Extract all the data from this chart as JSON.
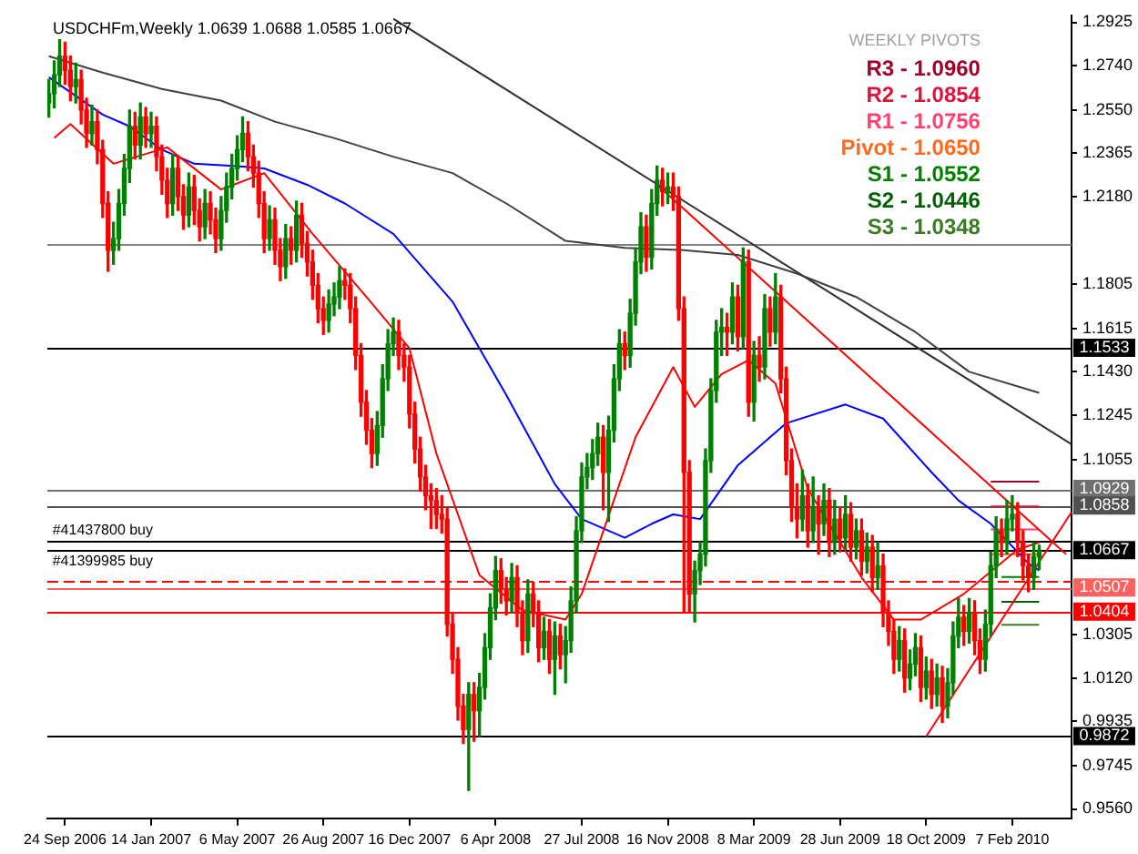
{
  "chart_data": {
    "type": "candlestick",
    "title": "USDCHFm,Weekly 1.0639 1.0688 1.0585 1.0667",
    "legend_title": "WEEKLY PIVOTS",
    "legend": "top right",
    "grid": false,
    "marker": "none",
    "xlim": [
      "2006-09-01",
      "2010-04-25"
    ],
    "xticks": [
      {
        "value": "2006-09-24",
        "label": "24 Sep 2006"
      },
      {
        "value": "2007-01-14",
        "label": "14 Jan 2007"
      },
      {
        "value": "2007-05-06",
        "label": "6 May 2007"
      },
      {
        "value": "2007-08-26",
        "label": "26 Aug 2007"
      },
      {
        "value": "2007-12-16",
        "label": "16 Dec 2007"
      },
      {
        "value": "2008-04-06",
        "label": "6 Apr 2008"
      },
      {
        "value": "2008-07-27",
        "label": "27 Jul 2008"
      },
      {
        "value": "2008-11-16",
        "label": "16 Nov 2008"
      },
      {
        "value": "2009-03-08",
        "label": "8 Mar 2009"
      },
      {
        "value": "2009-06-28",
        "label": "28 Jun 2009"
      },
      {
        "value": "2009-10-18",
        "label": "18 Oct 2009"
      },
      {
        "value": "2010-02-07",
        "label": "7 Feb 2010"
      }
    ],
    "ylim": [
      0.952,
      1.2955
    ],
    "yticks": [
      1.2925,
      {
        "value": 1.274,
        "label": "1.2740"
      },
      {
        "value": 1.255,
        "label": "1.2550"
      },
      1.2365,
      {
        "value": 1.218,
        "label": "1.2180"
      },
      1.1805,
      1.1615,
      {
        "value": 1.143,
        "label": "1.1430"
      },
      1.1245,
      1.1055,
      1.0305,
      {
        "value": 1.012,
        "label": "1.0120"
      },
      0.9935,
      0.9745,
      {
        "value": 0.956,
        "label": "0.9560"
      }
    ],
    "x": [
      "2006-09-03",
      "2006-09-10",
      "2006-09-17",
      "2006-09-24",
      "2006-10-01",
      "2006-10-08",
      "2006-10-15",
      "2006-10-22",
      "2006-10-29",
      "2006-11-05",
      "2006-11-12",
      "2006-11-19",
      "2006-11-26",
      "2006-12-03",
      "2006-12-10",
      "2006-12-17",
      "2006-12-24",
      "2006-12-31",
      "2007-01-07",
      "2007-01-14",
      "2007-01-21",
      "2007-01-28",
      "2007-02-04",
      "2007-02-11",
      "2007-02-18",
      "2007-02-25",
      "2007-03-04",
      "2007-03-11",
      "2007-03-18",
      "2007-03-25",
      "2007-04-01",
      "2007-04-08",
      "2007-04-15",
      "2007-04-22",
      "2007-04-29",
      "2007-05-06",
      "2007-05-13",
      "2007-05-20",
      "2007-05-27",
      "2007-06-03",
      "2007-06-10",
      "2007-06-17",
      "2007-06-24",
      "2007-07-01",
      "2007-07-08",
      "2007-07-15",
      "2007-07-22",
      "2007-07-29",
      "2007-08-05",
      "2007-08-12",
      "2007-08-19",
      "2007-08-26",
      "2007-09-02",
      "2007-09-09",
      "2007-09-16",
      "2007-09-23",
      "2007-09-30",
      "2007-10-07",
      "2007-10-14",
      "2007-10-21",
      "2007-10-28",
      "2007-11-04",
      "2007-11-11",
      "2007-11-18",
      "2007-11-25",
      "2007-12-02",
      "2007-12-09",
      "2007-12-16",
      "2007-12-23",
      "2007-12-30",
      "2008-01-06",
      "2008-01-13",
      "2008-01-20",
      "2008-01-27",
      "2008-02-03",
      "2008-02-10",
      "2008-02-17",
      "2008-02-24",
      "2008-03-02",
      "2008-03-09",
      "2008-03-16",
      "2008-03-23",
      "2008-03-30",
      "2008-04-06",
      "2008-04-13",
      "2008-04-20",
      "2008-04-27",
      "2008-05-04",
      "2008-05-11",
      "2008-05-18",
      "2008-05-25",
      "2008-06-01",
      "2008-06-08",
      "2008-06-15",
      "2008-06-22",
      "2008-06-29",
      "2008-07-06",
      "2008-07-13",
      "2008-07-20",
      "2008-07-27",
      "2008-08-03",
      "2008-08-10",
      "2008-08-17",
      "2008-08-24",
      "2008-08-31",
      "2008-09-07",
      "2008-09-14",
      "2008-09-21",
      "2008-09-28",
      "2008-10-05",
      "2008-10-12",
      "2008-10-19",
      "2008-10-26",
      "2008-11-02",
      "2008-11-09",
      "2008-11-16",
      "2008-11-23",
      "2008-11-30",
      "2008-12-07",
      "2008-12-14",
      "2008-12-21",
      "2008-12-28",
      "2009-01-04",
      "2009-01-11",
      "2009-01-18",
      "2009-01-25",
      "2009-02-01",
      "2009-02-08",
      "2009-02-15",
      "2009-02-22",
      "2009-03-01",
      "2009-03-08",
      "2009-03-15",
      "2009-03-22",
      "2009-03-29",
      "2009-04-05",
      "2009-04-12",
      "2009-04-19",
      "2009-04-26",
      "2009-05-03",
      "2009-05-10",
      "2009-05-17",
      "2009-05-24",
      "2009-05-31",
      "2009-06-07",
      "2009-06-14",
      "2009-06-21",
      "2009-06-28",
      "2009-07-05",
      "2009-07-12",
      "2009-07-19",
      "2009-07-26",
      "2009-08-02",
      "2009-08-09",
      "2009-08-16",
      "2009-08-23",
      "2009-08-30",
      "2009-09-06",
      "2009-09-13",
      "2009-09-20",
      "2009-09-27",
      "2009-10-04",
      "2009-10-11",
      "2009-10-18",
      "2009-10-25",
      "2009-11-01",
      "2009-11-08",
      "2009-11-15",
      "2009-11-22",
      "2009-11-29",
      "2009-12-06",
      "2009-12-13",
      "2009-12-20",
      "2009-12-27",
      "2010-01-03",
      "2010-01-10",
      "2010-01-17",
      "2010-01-24",
      "2010-01-31",
      "2010-02-07",
      "2010-02-14",
      "2010-02-21",
      "2010-02-28",
      "2010-03-07",
      "2010-03-14"
    ],
    "ohlc": [
      [
        1.258,
        1.268,
        1.252,
        1.262
      ],
      [
        1.262,
        1.276,
        1.256,
        1.27
      ],
      [
        1.27,
        1.285,
        1.265,
        1.278
      ],
      [
        1.278,
        1.284,
        1.266,
        1.272
      ],
      [
        1.272,
        1.278,
        1.259,
        1.265
      ],
      [
        1.265,
        1.275,
        1.258,
        1.268
      ],
      [
        1.268,
        1.272,
        1.249,
        1.255
      ],
      [
        1.255,
        1.26,
        1.239,
        1.245
      ],
      [
        1.245,
        1.257,
        1.24,
        1.25
      ],
      [
        1.25,
        1.255,
        1.232,
        1.238
      ],
      [
        1.238,
        1.242,
        1.209,
        1.215
      ],
      [
        1.215,
        1.22,
        1.186,
        1.195
      ],
      [
        1.195,
        1.207,
        1.189,
        1.2
      ],
      [
        1.2,
        1.221,
        1.195,
        1.215
      ],
      [
        1.215,
        1.236,
        1.21,
        1.23
      ],
      [
        1.23,
        1.255,
        1.224,
        1.248
      ],
      [
        1.248,
        1.254,
        1.234,
        1.24
      ],
      [
        1.24,
        1.258,
        1.234,
        1.252
      ],
      [
        1.252,
        1.256,
        1.239,
        1.245
      ],
      [
        1.245,
        1.254,
        1.239,
        1.248
      ],
      [
        1.248,
        1.252,
        1.229,
        1.235
      ],
      [
        1.235,
        1.24,
        1.219,
        1.225
      ],
      [
        1.225,
        1.23,
        1.209,
        1.215
      ],
      [
        1.215,
        1.236,
        1.21,
        1.23
      ],
      [
        1.23,
        1.235,
        1.212,
        1.218
      ],
      [
        1.218,
        1.223,
        1.204,
        1.21
      ],
      [
        1.21,
        1.228,
        1.205,
        1.222
      ],
      [
        1.222,
        1.227,
        1.206,
        1.212
      ],
      [
        1.212,
        1.217,
        1.199,
        1.205
      ],
      [
        1.205,
        1.221,
        1.2,
        1.215
      ],
      [
        1.215,
        1.22,
        1.202,
        1.208
      ],
      [
        1.208,
        1.213,
        1.194,
        1.2
      ],
      [
        1.2,
        1.218,
        1.195,
        1.212
      ],
      [
        1.212,
        1.228,
        1.207,
        1.222
      ],
      [
        1.222,
        1.236,
        1.217,
        1.23
      ],
      [
        1.23,
        1.244,
        1.225,
        1.238
      ],
      [
        1.238,
        1.252,
        1.233,
        1.245
      ],
      [
        1.245,
        1.25,
        1.229,
        1.235
      ],
      [
        1.235,
        1.24,
        1.222,
        1.228
      ],
      [
        1.228,
        1.233,
        1.209,
        1.215
      ],
      [
        1.215,
        1.22,
        1.194,
        1.2
      ],
      [
        1.2,
        1.214,
        1.195,
        1.208
      ],
      [
        1.208,
        1.213,
        1.189,
        1.195
      ],
      [
        1.195,
        1.2,
        1.182,
        1.188
      ],
      [
        1.188,
        1.206,
        1.183,
        1.2
      ],
      [
        1.2,
        1.205,
        1.189,
        1.195
      ],
      [
        1.195,
        1.216,
        1.19,
        1.21
      ],
      [
        1.21,
        1.215,
        1.192,
        1.198
      ],
      [
        1.198,
        1.203,
        1.184,
        1.19
      ],
      [
        1.19,
        1.195,
        1.174,
        1.18
      ],
      [
        1.18,
        1.185,
        1.164,
        1.17
      ],
      [
        1.17,
        1.175,
        1.159,
        1.165
      ],
      [
        1.165,
        1.178,
        1.16,
        1.172
      ],
      [
        1.172,
        1.181,
        1.167,
        1.175
      ],
      [
        1.175,
        1.188,
        1.17,
        1.182
      ],
      [
        1.182,
        1.187,
        1.174,
        1.18
      ],
      [
        1.18,
        1.185,
        1.164,
        1.17
      ],
      [
        1.17,
        1.175,
        1.144,
        1.15
      ],
      [
        1.15,
        1.155,
        1.124,
        1.13
      ],
      [
        1.13,
        1.135,
        1.112,
        1.118
      ],
      [
        1.118,
        1.123,
        1.102,
        1.108
      ],
      [
        1.108,
        1.126,
        1.103,
        1.12
      ],
      [
        1.12,
        1.146,
        1.115,
        1.14
      ],
      [
        1.14,
        1.161,
        1.135,
        1.155
      ],
      [
        1.155,
        1.166,
        1.15,
        1.16
      ],
      [
        1.16,
        1.165,
        1.144,
        1.15
      ],
      [
        1.15,
        1.155,
        1.139,
        1.145
      ],
      [
        1.145,
        1.15,
        1.119,
        1.125
      ],
      [
        1.125,
        1.13,
        1.104,
        1.11
      ],
      [
        1.11,
        1.115,
        1.092,
        1.098
      ],
      [
        1.098,
        1.103,
        1.084,
        1.09
      ],
      [
        1.09,
        1.095,
        1.076,
        1.088
      ],
      [
        1.088,
        1.093,
        1.076,
        1.082
      ],
      [
        1.082,
        1.09,
        1.074,
        1.08
      ],
      [
        1.08,
        1.085,
        1.03,
        1.035
      ],
      [
        1.035,
        1.04,
        1.014,
        1.02
      ],
      [
        1.02,
        1.025,
        0.994,
        1.0
      ],
      [
        1.0,
        1.005,
        0.984,
        0.99
      ],
      [
        0.99,
        1.01,
        0.964,
        1.005
      ],
      [
        1.005,
        1.01,
        0.985,
        0.998
      ],
      [
        0.998,
        1.014,
        0.987,
        1.008
      ],
      [
        1.008,
        1.031,
        1.003,
        1.025
      ],
      [
        1.025,
        1.048,
        1.02,
        1.042
      ],
      [
        1.042,
        1.064,
        1.037,
        1.058
      ],
      [
        1.058,
        1.063,
        1.044,
        1.05
      ],
      [
        1.05,
        1.055,
        1.039,
        1.045
      ],
      [
        1.045,
        1.061,
        1.04,
        1.055
      ],
      [
        1.055,
        1.06,
        1.034,
        1.04
      ],
      [
        1.04,
        1.045,
        1.022,
        1.028
      ],
      [
        1.028,
        1.054,
        1.023,
        1.048
      ],
      [
        1.048,
        1.053,
        1.034,
        1.04
      ],
      [
        1.04,
        1.045,
        1.019,
        1.025
      ],
      [
        1.025,
        1.038,
        1.02,
        1.032
      ],
      [
        1.032,
        1.037,
        1.014,
        1.02
      ],
      [
        1.02,
        1.036,
        1.005,
        1.03
      ],
      [
        1.03,
        1.035,
        1.016,
        1.022
      ],
      [
        1.022,
        1.034,
        1.01,
        1.028
      ],
      [
        1.028,
        1.051,
        1.023,
        1.045
      ],
      [
        1.045,
        1.081,
        1.04,
        1.075
      ],
      [
        1.075,
        1.104,
        1.07,
        1.098
      ],
      [
        1.098,
        1.108,
        1.093,
        1.102
      ],
      [
        1.102,
        1.114,
        1.097,
        1.108
      ],
      [
        1.108,
        1.121,
        1.103,
        1.115
      ],
      [
        1.115,
        1.12,
        1.084,
        1.1
      ],
      [
        1.1,
        1.124,
        1.079,
        1.118
      ],
      [
        1.118,
        1.146,
        1.113,
        1.14
      ],
      [
        1.14,
        1.161,
        1.135,
        1.155
      ],
      [
        1.155,
        1.16,
        1.144,
        1.15
      ],
      [
        1.15,
        1.174,
        1.145,
        1.168
      ],
      [
        1.168,
        1.196,
        1.163,
        1.19
      ],
      [
        1.19,
        1.211,
        1.185,
        1.205
      ],
      [
        1.205,
        1.21,
        1.186,
        1.192
      ],
      [
        1.192,
        1.221,
        1.187,
        1.215
      ],
      [
        1.215,
        1.231,
        1.21,
        1.225
      ],
      [
        1.225,
        1.23,
        1.214,
        1.22
      ],
      [
        1.22,
        1.228,
        1.215,
        1.222
      ],
      [
        1.222,
        1.228,
        1.212,
        1.218
      ],
      [
        1.218,
        1.222,
        1.165,
        1.17
      ],
      [
        1.17,
        1.175,
        1.04,
        1.1
      ],
      [
        1.1,
        1.105,
        1.04,
        1.048
      ],
      [
        1.048,
        1.062,
        1.036,
        1.058
      ],
      [
        1.058,
        1.07,
        1.052,
        1.065
      ],
      [
        1.065,
        1.11,
        1.06,
        1.105
      ],
      [
        1.105,
        1.14,
        1.1,
        1.135
      ],
      [
        1.135,
        1.165,
        1.13,
        1.16
      ],
      [
        1.16,
        1.17,
        1.15,
        1.162
      ],
      [
        1.162,
        1.168,
        1.15,
        1.16
      ],
      [
        1.16,
        1.181,
        1.155,
        1.175
      ],
      [
        1.175,
        1.18,
        1.152,
        1.158
      ],
      [
        1.158,
        1.196,
        1.153,
        1.19
      ],
      [
        1.19,
        1.195,
        1.124,
        1.13
      ],
      [
        1.13,
        1.156,
        1.122,
        1.15
      ],
      [
        1.15,
        1.158,
        1.139,
        1.145
      ],
      [
        1.145,
        1.176,
        1.14,
        1.17
      ],
      [
        1.17,
        1.175,
        1.154,
        1.16
      ],
      [
        1.16,
        1.185,
        1.155,
        1.175
      ],
      [
        1.175,
        1.18,
        1.134,
        1.14
      ],
      [
        1.14,
        1.145,
        1.099,
        1.105
      ],
      [
        1.105,
        1.11,
        1.079,
        1.085
      ],
      [
        1.085,
        1.095,
        1.072,
        1.08
      ],
      [
        1.08,
        1.101,
        1.075,
        1.09
      ],
      [
        1.09,
        1.095,
        1.068,
        1.075
      ],
      [
        1.075,
        1.098,
        1.07,
        1.085
      ],
      [
        1.085,
        1.09,
        1.065,
        1.078
      ],
      [
        1.078,
        1.095,
        1.073,
        1.088
      ],
      [
        1.088,
        1.093,
        1.064,
        1.07
      ],
      [
        1.07,
        1.088,
        1.065,
        1.08
      ],
      [
        1.08,
        1.085,
        1.066,
        1.072
      ],
      [
        1.072,
        1.09,
        1.067,
        1.082
      ],
      [
        1.082,
        1.087,
        1.062,
        1.068
      ],
      [
        1.068,
        1.08,
        1.063,
        1.075
      ],
      [
        1.075,
        1.08,
        1.056,
        1.062
      ],
      [
        1.062,
        1.074,
        1.057,
        1.068
      ],
      [
        1.068,
        1.073,
        1.049,
        1.055
      ],
      [
        1.055,
        1.07,
        1.05,
        1.06
      ],
      [
        1.06,
        1.065,
        1.034,
        1.04
      ],
      [
        1.04,
        1.045,
        1.026,
        1.032
      ],
      [
        1.032,
        1.037,
        1.014,
        1.02
      ],
      [
        1.02,
        1.034,
        1.015,
        1.028
      ],
      [
        1.028,
        1.033,
        1.006,
        1.012
      ],
      [
        1.012,
        1.024,
        1.007,
        1.018
      ],
      [
        1.018,
        1.031,
        1.013,
        1.025
      ],
      [
        1.025,
        1.03,
        1.002,
        1.008
      ],
      [
        1.008,
        1.021,
        1.003,
        1.015
      ],
      [
        1.015,
        1.02,
        0.999,
        1.005
      ],
      [
        1.005,
        1.018,
        1.0,
        1.012
      ],
      [
        1.012,
        1.017,
        0.993,
        1.0
      ],
      [
        1.0,
        1.016,
        0.995,
        1.01
      ],
      [
        1.01,
        1.036,
        1.005,
        1.03
      ],
      [
        1.03,
        1.046,
        1.025,
        1.038
      ],
      [
        1.038,
        1.043,
        1.026,
        1.032
      ],
      [
        1.032,
        1.046,
        1.027,
        1.04
      ],
      [
        1.04,
        1.045,
        1.022,
        1.028
      ],
      [
        1.028,
        1.033,
        1.014,
        1.02
      ],
      [
        1.02,
        1.041,
        1.015,
        1.035
      ],
      [
        1.035,
        1.066,
        1.03,
        1.06
      ],
      [
        1.06,
        1.081,
        1.055,
        1.075
      ],
      [
        1.075,
        1.08,
        1.064,
        1.07
      ],
      [
        1.07,
        1.088,
        1.065,
        1.08
      ],
      [
        1.08,
        1.09,
        1.075,
        1.082
      ],
      [
        1.082,
        1.087,
        1.064,
        1.07
      ],
      [
        1.07,
        1.075,
        1.054,
        1.06
      ],
      [
        1.06,
        1.065,
        1.049,
        1.055
      ],
      [
        1.055,
        1.07,
        1.05,
        1.0639
      ],
      [
        1.0639,
        1.0688,
        1.0585,
        1.0667
      ]
    ],
    "colors": [
      "#008000",
      "#008000",
      "#008000",
      "#ff0000",
      "#ff0000",
      "#008000",
      "#ff0000",
      "#ff0000",
      "#008000",
      "#ff0000",
      "#ff0000",
      "#ff0000",
      "#008000",
      "#008000",
      "#008000",
      "#008000",
      "#ff0000",
      "#008000",
      "#ff0000",
      "#008000",
      "#ff0000",
      "#ff0000",
      "#ff0000",
      "#008000",
      "#ff0000",
      "#ff0000",
      "#008000",
      "#ff0000",
      "#ff0000",
      "#008000",
      "#ff0000",
      "#ff0000",
      "#008000",
      "#008000",
      "#008000",
      "#008000",
      "#008000",
      "#ff0000",
      "#ff0000",
      "#ff0000",
      "#ff0000",
      "#008000",
      "#ff0000",
      "#ff0000",
      "#008000",
      "#ff0000",
      "#008000",
      "#ff0000",
      "#ff0000",
      "#ff0000",
      "#ff0000",
      "#ff0000",
      "#008000",
      "#008000",
      "#008000",
      "#ff0000",
      "#ff0000",
      "#ff0000",
      "#ff0000",
      "#ff0000",
      "#ff0000",
      "#008000",
      "#008000",
      "#008000",
      "#008000",
      "#ff0000",
      "#ff0000",
      "#ff0000",
      "#ff0000",
      "#ff0000",
      "#ff0000",
      "#ff0000",
      "#ff0000",
      "#ff0000",
      "#ff0000",
      "#ff0000",
      "#ff0000",
      "#ff0000",
      "#008000",
      "#ff0000",
      "#008000",
      "#008000",
      "#008000",
      "#008000",
      "#ff0000",
      "#ff0000",
      "#008000",
      "#ff0000",
      "#ff0000",
      "#008000",
      "#ff0000",
      "#ff0000",
      "#008000",
      "#ff0000",
      "#008000",
      "#ff0000",
      "#008000",
      "#008000",
      "#008000",
      "#008000",
      "#008000",
      "#008000",
      "#008000",
      "#ff0000",
      "#008000",
      "#008000",
      "#008000",
      "#ff0000",
      "#008000",
      "#008000",
      "#008000",
      "#ff0000",
      "#008000",
      "#008000",
      "#ff0000",
      "#008000",
      "#ff0000",
      "#ff0000",
      "#ff0000",
      "#ff0000",
      "#008000",
      "#008000",
      "#008000",
      "#008000",
      "#008000",
      "#008000",
      "#ff0000",
      "#008000",
      "#ff0000",
      "#008000",
      "#ff0000",
      "#008000",
      "#ff0000",
      "#008000",
      "#ff0000",
      "#008000",
      "#ff0000",
      "#ff0000",
      "#ff0000",
      "#ff0000",
      "#008000",
      "#ff0000",
      "#008000",
      "#ff0000",
      "#008000",
      "#ff0000",
      "#008000",
      "#ff0000",
      "#008000",
      "#ff0000",
      "#008000",
      "#ff0000",
      "#008000",
      "#ff0000",
      "#008000",
      "#ff0000",
      "#ff0000",
      "#ff0000",
      "#008000",
      "#ff0000",
      "#008000",
      "#008000",
      "#ff0000",
      "#008000",
      "#ff0000",
      "#008000",
      "#ff0000",
      "#008000",
      "#008000",
      "#008000",
      "#ff0000",
      "#008000",
      "#ff0000",
      "#ff0000",
      "#008000",
      "#008000",
      "#008000",
      "#ff0000",
      "#008000",
      "#008000",
      "#ff0000",
      "#ff0000",
      "#ff0000",
      "#008000",
      "#008000"
    ],
    "series": [
      {
        "type": "line",
        "color": "#ff0000",
        "x": [
          "2006-09-10",
          "2006-10-01",
          "2006-11-26",
          "2007-02-04",
          "2007-04-15",
          "2007-06-10",
          "2007-08-12",
          "2007-10-21",
          "2007-12-16",
          "2008-01-20",
          "2008-03-16",
          "2008-05-11",
          "2008-07-06",
          "2008-07-27",
          "2008-10-05",
          "2008-11-23",
          "2008-12-21",
          "2009-01-25",
          "2009-03-01",
          "2009-04-05",
          "2009-05-17",
          "2009-07-26",
          "2009-09-06",
          "2009-10-11",
          "2009-12-06",
          "2010-02-14",
          "2010-03-14"
        ],
        "values": [
          1.243,
          1.249,
          1.232,
          1.239,
          1.221,
          1.228,
          1.202,
          1.175,
          1.153,
          1.108,
          1.056,
          1.041,
          1.037,
          1.048,
          1.115,
          1.145,
          1.128,
          1.142,
          1.148,
          1.138,
          1.093,
          1.055,
          1.037,
          1.037,
          1.048,
          1.067,
          1.07
        ]
      },
      {
        "type": "line",
        "color": "#0000ff",
        "x": [
          "2006-09-03",
          "2006-11-12",
          "2006-12-17",
          "2007-01-28",
          "2007-03-11",
          "2007-05-06",
          "2007-06-10",
          "2007-08-05",
          "2007-09-23",
          "2007-11-25",
          "2008-02-10",
          "2008-04-20",
          "2008-06-22",
          "2008-07-27",
          "2008-09-21",
          "2008-10-26",
          "2008-11-23",
          "2008-12-28",
          "2009-02-15",
          "2009-04-19",
          "2009-07-05",
          "2009-08-23",
          "2009-10-25",
          "2009-11-29",
          "2010-01-10",
          "2010-02-28",
          "2010-03-14"
        ],
        "values": [
          1.269,
          1.253,
          1.248,
          1.238,
          1.232,
          1.231,
          1.23,
          1.223,
          1.215,
          1.202,
          1.173,
          1.133,
          1.095,
          1.08,
          1.072,
          1.078,
          1.082,
          1.08,
          1.103,
          1.121,
          1.129,
          1.123,
          1.1,
          1.088,
          1.078,
          1.061,
          1.058
        ]
      },
      {
        "type": "line",
        "color": "#404040",
        "x": [
          "2006-09-03",
          "2006-11-12",
          "2007-01-28",
          "2007-04-15",
          "2007-06-24",
          "2007-09-09",
          "2007-11-25",
          "2008-02-10",
          "2008-04-20",
          "2008-07-06",
          "2008-09-21",
          "2008-12-07",
          "2009-02-15",
          "2009-05-03",
          "2009-07-19",
          "2009-10-04",
          "2009-12-13",
          "2010-03-14"
        ],
        "values": [
          1.278,
          1.271,
          1.264,
          1.259,
          1.25,
          1.243,
          1.235,
          1.228,
          1.215,
          1.199,
          1.196,
          1.195,
          1.193,
          1.185,
          1.175,
          1.16,
          1.143,
          1.134
        ]
      },
      {
        "type": "line",
        "color": "#303030",
        "x": [
          "2007-11-25",
          "2010-04-25"
        ],
        "values": [
          1.294,
          1.112
        ]
      },
      {
        "type": "line",
        "color": "#ff0000",
        "x": [
          "2008-11-02",
          "2010-04-18"
        ],
        "values": [
          1.223,
          1.065
        ]
      },
      {
        "type": "line",
        "color": "#ff0000",
        "x": [
          "2009-10-18",
          "2010-04-25"
        ],
        "values": [
          0.987,
          1.083
        ]
      },
      {
        "type": "line",
        "name": "R3 - 1.0960",
        "color": "#a0002a",
        "x": [
          "2010-01-10",
          "2010-03-14"
        ],
        "values": [
          1.096,
          1.096
        ]
      },
      {
        "type": "line",
        "name": "R2 - 1.0854",
        "color": "#dc143c",
        "x": [
          "2010-01-10",
          "2010-03-14"
        ],
        "values": [
          1.0854,
          1.0854
        ]
      },
      {
        "type": "line",
        "name": "R1 - 1.0756",
        "color": "#ff4070",
        "x": [
          "2010-01-10",
          "2010-03-14"
        ],
        "values": [
          1.0756,
          1.0756
        ]
      },
      {
        "type": "line",
        "name": "Pivot - 1.0650",
        "color": "#ff6a1f",
        "x": [
          "2010-01-10",
          "2010-03-14"
        ],
        "values": [
          1.065,
          1.065
        ]
      },
      {
        "type": "line",
        "name": "S1 - 1.0552",
        "color": "#008000",
        "x": [
          "2010-01-24",
          "2010-03-14"
        ],
        "values": [
          1.0552,
          1.0552
        ]
      },
      {
        "type": "line",
        "name": "S2 - 1.0446",
        "color": "#006000",
        "x": [
          "2010-01-24",
          "2010-03-14"
        ],
        "values": [
          1.0446,
          1.0446
        ]
      },
      {
        "type": "line",
        "name": "S3 - 1.0348",
        "color": "#3a7a20",
        "x": [
          "2010-01-24",
          "2010-03-14"
        ],
        "values": [
          1.0348,
          1.0348
        ]
      }
    ],
    "ref_lines": [
      {
        "axis": "y",
        "value": 1.1975,
        "label": null,
        "color": "#808080"
      },
      {
        "axis": "y",
        "value": 1.1533,
        "label": "1.1533",
        "color": "#000000"
      },
      {
        "axis": "y",
        "value": 1.0929,
        "label": "1.0929",
        "color": "#707070"
      },
      {
        "axis": "y",
        "value": 1.0858,
        "label": "1.0858",
        "color": "#505050"
      },
      {
        "axis": "y",
        "value": 1.0705,
        "label": null,
        "color": "#000000"
      },
      {
        "axis": "y",
        "value": 1.0667,
        "label": "1.0667",
        "color": "#000000"
      },
      {
        "axis": "y",
        "value": 1.0538,
        "label": null,
        "color": "#ff0000",
        "line_style": "dashed"
      },
      {
        "axis": "y",
        "value": 1.0507,
        "label": "1.0507",
        "color": "#ff6060"
      },
      {
        "axis": "y",
        "value": 1.0404,
        "label": "1.0404",
        "color": "#ff0000"
      },
      {
        "axis": "y",
        "value": 0.9872,
        "label": "0.9872",
        "color": "#000000"
      }
    ],
    "annotations": [
      {
        "text": "#41437800 buy",
        "x": "2006-09-03",
        "y": 1.0705
      },
      {
        "text": "#41399985 buy",
        "x": "2006-09-03",
        "y": 1.0667
      }
    ]
  }
}
